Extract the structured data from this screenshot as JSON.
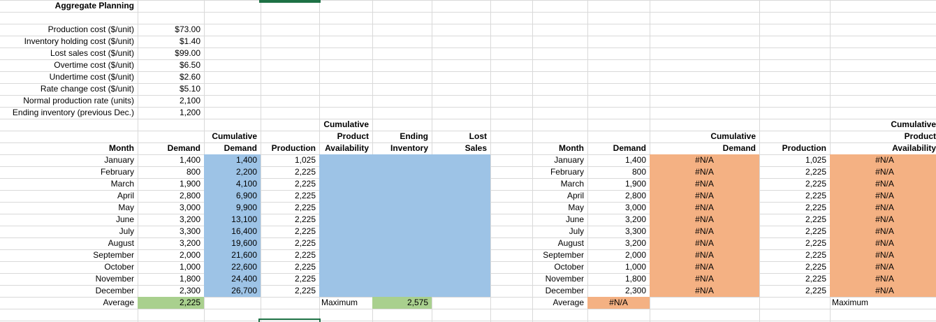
{
  "title": "Aggregate Planning",
  "colors": {
    "highlight_blue": "#9DC3E6",
    "highlight_orange": "#F4B183",
    "highlight_green": "#A9D08E",
    "selection_border": "#1E7145",
    "gridline": "#D9D9D9"
  },
  "parameters": [
    {
      "label": "Production cost ($/unit)",
      "value": "$73.00"
    },
    {
      "label": "Inventory holding cost ($/unit)",
      "value": "$1.40"
    },
    {
      "label": "Lost sales cost ($/unit)",
      "value": "$99.00"
    },
    {
      "label": "Overtime cost ($/unit)",
      "value": "$6.50"
    },
    {
      "label": "Undertime cost ($/unit)",
      "value": "$2.60"
    },
    {
      "label": "Rate change cost ($/unit)",
      "value": "$5.10"
    },
    {
      "label": "Normal production rate (units)",
      "value": "2,100"
    },
    {
      "label": "Ending inventory (previous Dec.)",
      "value": "1,200"
    }
  ],
  "left_table": {
    "col_headers": {
      "month": "Month",
      "demand": "Demand",
      "cum_demand": "Cumulative\nDemand",
      "production": "Production",
      "cum_avail": "Cumulative\nProduct\nAvailability",
      "ending_inv": "Ending\nInventory",
      "lost_sales": "Lost\nSales"
    },
    "rows": [
      {
        "month": "January",
        "demand": "1,400",
        "cum_demand": "1,400",
        "production": "1,025"
      },
      {
        "month": "February",
        "demand": "800",
        "cum_demand": "2,200",
        "production": "2,225"
      },
      {
        "month": "March",
        "demand": "1,900",
        "cum_demand": "4,100",
        "production": "2,225"
      },
      {
        "month": "April",
        "demand": "2,800",
        "cum_demand": "6,900",
        "production": "2,225"
      },
      {
        "month": "May",
        "demand": "3,000",
        "cum_demand": "9,900",
        "production": "2,225"
      },
      {
        "month": "June",
        "demand": "3,200",
        "cum_demand": "13,100",
        "production": "2,225"
      },
      {
        "month": "July",
        "demand": "3,300",
        "cum_demand": "16,400",
        "production": "2,225"
      },
      {
        "month": "August",
        "demand": "3,200",
        "cum_demand": "19,600",
        "production": "2,225"
      },
      {
        "month": "September",
        "demand": "2,000",
        "cum_demand": "21,600",
        "production": "2,225"
      },
      {
        "month": "October",
        "demand": "1,000",
        "cum_demand": "22,600",
        "production": "2,225"
      },
      {
        "month": "November",
        "demand": "1,800",
        "cum_demand": "24,400",
        "production": "2,225"
      },
      {
        "month": "December",
        "demand": "2,300",
        "cum_demand": "26,700",
        "production": "2,225"
      }
    ],
    "footer": {
      "average_label": "Average",
      "average_demand": "2,225",
      "maximum_label": "Maximum",
      "maximum_value": "2,575"
    }
  },
  "right_table": {
    "col_headers": {
      "month": "Month",
      "demand": "Demand",
      "cum_demand": "Cumulative\nDemand",
      "production": "Production",
      "cum_avail": "Cumulative\nProduct\nAvailability"
    },
    "rows": [
      {
        "month": "January",
        "demand": "1,400",
        "cum_demand": "#N/A",
        "production": "1,025",
        "cum_avail": "#N/A"
      },
      {
        "month": "February",
        "demand": "800",
        "cum_demand": "#N/A",
        "production": "2,225",
        "cum_avail": "#N/A"
      },
      {
        "month": "March",
        "demand": "1,900",
        "cum_demand": "#N/A",
        "production": "2,225",
        "cum_avail": "#N/A"
      },
      {
        "month": "April",
        "demand": "2,800",
        "cum_demand": "#N/A",
        "production": "2,225",
        "cum_avail": "#N/A"
      },
      {
        "month": "May",
        "demand": "3,000",
        "cum_demand": "#N/A",
        "production": "2,225",
        "cum_avail": "#N/A"
      },
      {
        "month": "June",
        "demand": "3,200",
        "cum_demand": "#N/A",
        "production": "2,225",
        "cum_avail": "#N/A"
      },
      {
        "month": "July",
        "demand": "3,300",
        "cum_demand": "#N/A",
        "production": "2,225",
        "cum_avail": "#N/A"
      },
      {
        "month": "August",
        "demand": "3,200",
        "cum_demand": "#N/A",
        "production": "2,225",
        "cum_avail": "#N/A"
      },
      {
        "month": "September",
        "demand": "2,000",
        "cum_demand": "#N/A",
        "production": "2,225",
        "cum_avail": "#N/A"
      },
      {
        "month": "October",
        "demand": "1,000",
        "cum_demand": "#N/A",
        "production": "2,225",
        "cum_avail": "#N/A"
      },
      {
        "month": "November",
        "demand": "1,800",
        "cum_demand": "#N/A",
        "production": "2,225",
        "cum_avail": "#N/A"
      },
      {
        "month": "December",
        "demand": "2,300",
        "cum_demand": "#N/A",
        "production": "2,225",
        "cum_avail": "#N/A"
      }
    ],
    "footer": {
      "average_label": "Average",
      "average_demand": "#N/A",
      "maximum_label": "Maximum"
    }
  }
}
